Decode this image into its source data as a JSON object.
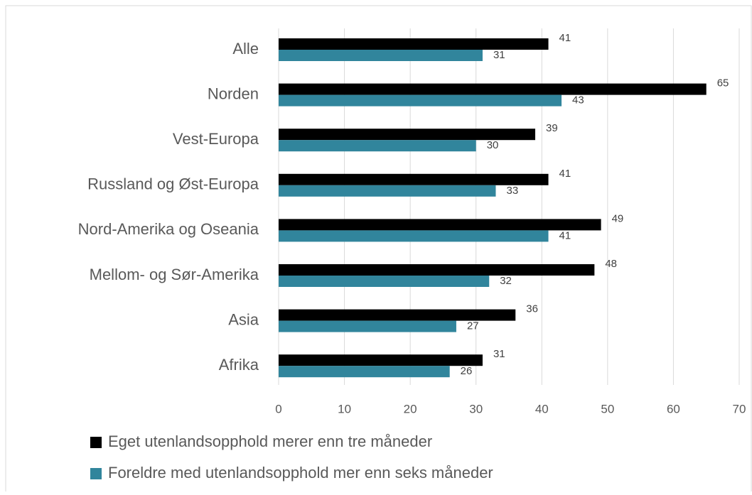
{
  "chart_data": {
    "type": "barh",
    "categories": [
      "Alle",
      "Norden",
      "Vest-Europa",
      "Russland og Øst-Europa",
      "Nord-Amerika og Oseania",
      "Mellom- og Sør-Amerika",
      "Asia",
      "Afrika"
    ],
    "series": [
      {
        "name": "Eget utenlandsopphold merer enn tre måneder",
        "color": "#000000",
        "values": [
          41,
          65,
          39,
          41,
          49,
          48,
          36,
          31
        ]
      },
      {
        "name": "Foreldre med utenlandsopphold mer enn seks måneder",
        "color": "#31859c",
        "values": [
          31,
          43,
          30,
          33,
          41,
          32,
          27,
          26
        ]
      }
    ],
    "xlim": [
      0,
      70
    ],
    "xticks": [
      0,
      10,
      20,
      30,
      40,
      50,
      60,
      70
    ],
    "grid": true,
    "legend": "bottom"
  }
}
